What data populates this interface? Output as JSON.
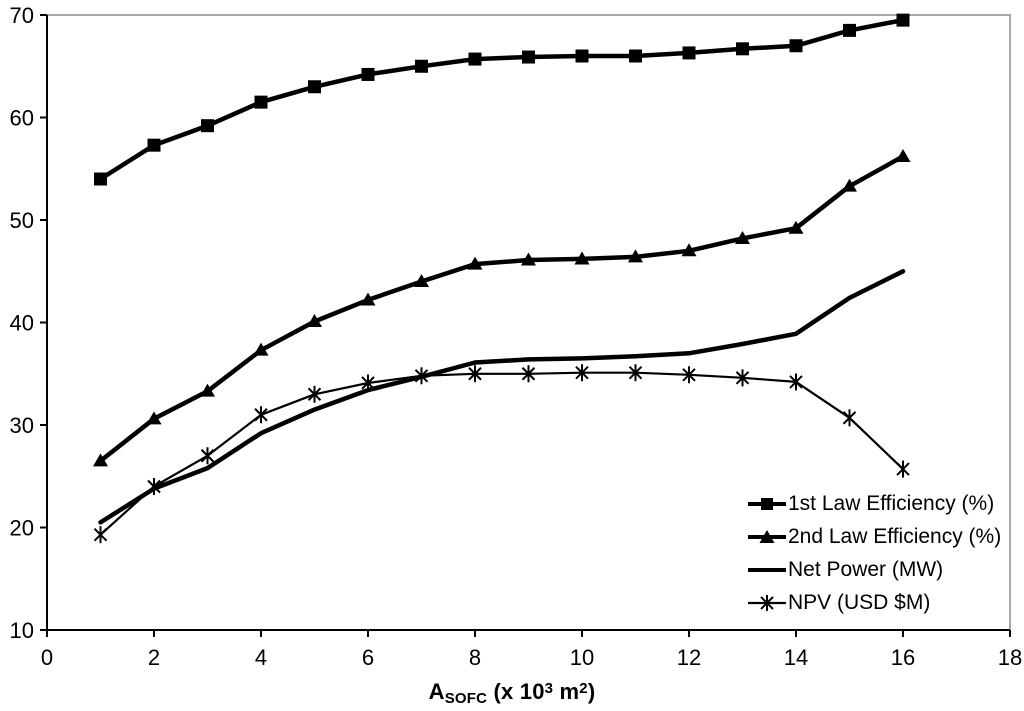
{
  "figure": {
    "x_axis_title": {
      "main": "A",
      "sub": "SOFC",
      "mid1": " (x 10",
      "sup1": "3",
      "mid2": " m",
      "sup2": "2",
      "end": ")"
    }
  },
  "chart_data": {
    "type": "line",
    "title": "",
    "xlabel": "A_SOFC (x 10^3 m^2)",
    "ylabel": "",
    "grid": false,
    "legend_position": "inside-lower-right",
    "background_color": "#ffffff",
    "line_color": "#000000",
    "frame_color": "#a8a8a8",
    "x_axis": {
      "min": 0,
      "max": 18,
      "ticks": [
        0,
        2,
        4,
        6,
        8,
        10,
        12,
        14,
        16,
        18
      ]
    },
    "y_axis": {
      "min": 10,
      "max": 70,
      "ticks": [
        10,
        20,
        30,
        40,
        50,
        60,
        70
      ]
    },
    "x": [
      1,
      2,
      3,
      4,
      5,
      6,
      7,
      8,
      9,
      10,
      11,
      12,
      13,
      14,
      15,
      16
    ],
    "series": [
      {
        "id": "first-law-efficiency",
        "name": "1st Law Efficiency (%)",
        "marker": "square",
        "values": [
          54,
          57.3,
          59.2,
          61.5,
          63,
          64.2,
          65,
          65.7,
          65.9,
          66,
          66,
          66.3,
          66.7,
          67,
          68.5,
          69.5
        ]
      },
      {
        "id": "second-law-efficiency",
        "name": "2nd Law Efficiency (%)",
        "marker": "triangle",
        "values": [
          26.5,
          30.6,
          33.3,
          37.3,
          40.1,
          42.2,
          44,
          45.7,
          46.1,
          46.2,
          46.4,
          47,
          48.2,
          49.2,
          53.3,
          56.2
        ]
      },
      {
        "id": "net-power",
        "name": "Net Power (MW)",
        "marker": "none",
        "values": [
          20.5,
          23.8,
          25.8,
          29.2,
          31.5,
          33.4,
          34.7,
          36.1,
          36.4,
          36.5,
          36.7,
          37,
          37.9,
          38.9,
          42.4,
          45
        ]
      },
      {
        "id": "npv",
        "name": "NPV (USD $M)",
        "marker": "asterisk",
        "values": [
          19.3,
          24,
          27,
          31,
          33,
          34.1,
          34.8,
          35,
          35,
          35.1,
          35.1,
          34.9,
          34.6,
          34.2,
          30.7,
          25.7
        ]
      }
    ]
  }
}
